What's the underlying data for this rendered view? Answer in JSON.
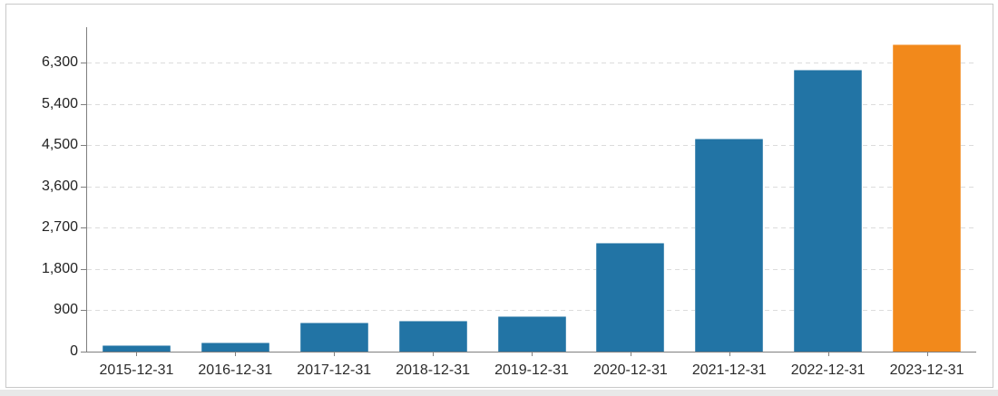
{
  "window": {
    "frame_color": "#c9c9c9",
    "background_color": "#ffffff",
    "bottom_strip_color": "#e8e8e8"
  },
  "chart_data": {
    "type": "bar",
    "title": "",
    "xlabel": "",
    "ylabel": "",
    "legend": "none",
    "grid": "horizontal-dashed",
    "categories": [
      "2015-12-31",
      "2016-12-31",
      "2017-12-31",
      "2018-12-31",
      "2019-12-31",
      "2020-12-31",
      "2021-12-31",
      "2022-12-31",
      "2023-12-31"
    ],
    "values": [
      130,
      190,
      630,
      670,
      780,
      2380,
      4650,
      6160,
      6700
    ],
    "highlight_index": 8,
    "bar_color": "#2274a5",
    "highlight_color": "#f2891b",
    "axis_color": "#7f7f7f",
    "gridline_color": "#dcdcdc",
    "label_color": "#2b2b2b",
    "ylim": [
      0,
      7080
    ],
    "y_ticks": [
      {
        "value": 0,
        "label": "0"
      },
      {
        "value": 900,
        "label": "900"
      },
      {
        "value": 1800,
        "label": "1,800"
      },
      {
        "value": 2700,
        "label": "2,700"
      },
      {
        "value": 3600,
        "label": "3,600"
      },
      {
        "value": 4500,
        "label": "4,500"
      },
      {
        "value": 5400,
        "label": "5,400"
      },
      {
        "value": 6300,
        "label": "6,300"
      }
    ]
  }
}
